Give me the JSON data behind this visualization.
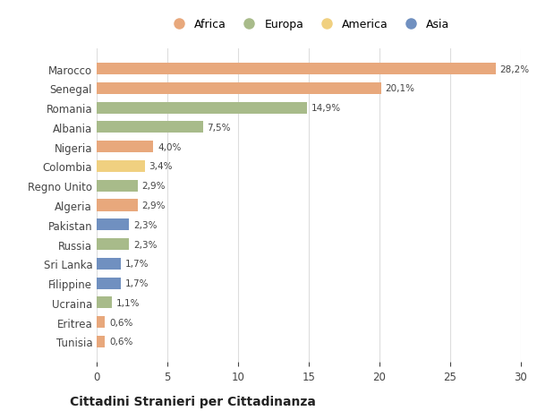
{
  "countries": [
    "Marocco",
    "Senegal",
    "Romania",
    "Albania",
    "Nigeria",
    "Colombia",
    "Regno Unito",
    "Algeria",
    "Pakistan",
    "Russia",
    "Sri Lanka",
    "Filippine",
    "Ucraina",
    "Eritrea",
    "Tunisia"
  ],
  "values": [
    28.2,
    20.1,
    14.9,
    7.5,
    4.0,
    3.4,
    2.9,
    2.9,
    2.3,
    2.3,
    1.7,
    1.7,
    1.1,
    0.6,
    0.6
  ],
  "labels": [
    "28,2%",
    "20,1%",
    "14,9%",
    "7,5%",
    "4,0%",
    "3,4%",
    "2,9%",
    "2,9%",
    "2,3%",
    "2,3%",
    "1,7%",
    "1,7%",
    "1,1%",
    "0,6%",
    "0,6%"
  ],
  "continents": [
    "Africa",
    "Africa",
    "Europa",
    "Europa",
    "Africa",
    "America",
    "Europa",
    "Africa",
    "Asia",
    "Europa",
    "Asia",
    "Asia",
    "Europa",
    "Africa",
    "Africa"
  ],
  "continent_colors": {
    "Africa": "#E8A87C",
    "Europa": "#A8BB8A",
    "America": "#F0D080",
    "Asia": "#7090C0"
  },
  "legend_order": [
    "Africa",
    "Europa",
    "America",
    "Asia"
  ],
  "title": "Cittadini Stranieri per Cittadinanza",
  "xlim": [
    0,
    30
  ],
  "xticks": [
    0,
    5,
    10,
    15,
    20,
    25,
    30
  ],
  "bg_color": "#ffffff",
  "grid_color": "#dddddd",
  "bar_height": 0.6
}
